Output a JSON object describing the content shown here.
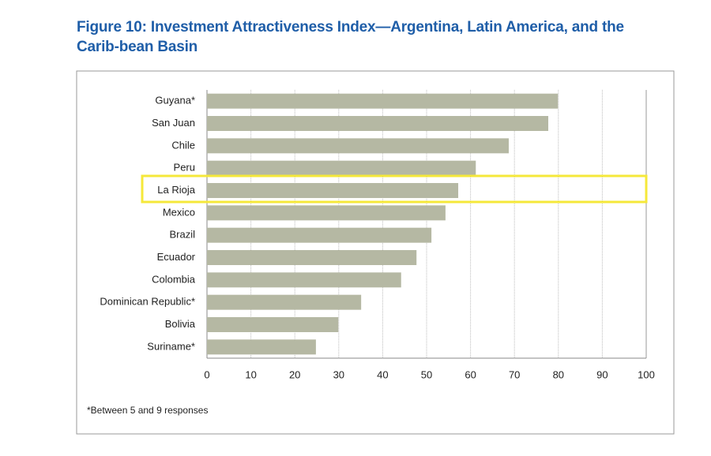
{
  "chart_data": {
    "type": "hbar",
    "title": "Figure 10: Investment Attractiveness Index—Argentina, Latin America, and the Carib-bean Basin",
    "categories": [
      "Guyana*",
      "San Juan",
      "Chile",
      "Peru",
      "La Rioja",
      "Mexico",
      "Brazil",
      "Ecuador",
      "Colombia",
      "Dominican Republic*",
      "Bolivia",
      "Suriname*"
    ],
    "values": [
      79.9,
      77.7,
      68.7,
      61.2,
      57.2,
      54.3,
      51.1,
      47.7,
      44.2,
      35.1,
      29.9,
      24.8
    ],
    "color": "#b5b8a3",
    "xlim": [
      0,
      100
    ],
    "xticks": [
      0,
      10,
      20,
      30,
      40,
      50,
      60,
      70,
      80,
      90,
      100
    ],
    "grid": true,
    "footnote": "*Between 5 and 9 responses"
  }
}
